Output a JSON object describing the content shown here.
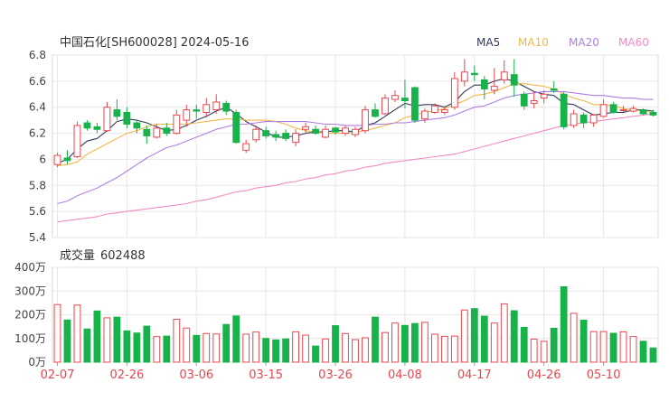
{
  "header": {
    "title": "中国石化[SH600028] 2024-05-16",
    "legend": [
      {
        "label": "MA5",
        "color": "#2f3a5a"
      },
      {
        "label": "MA10",
        "color": "#f0b84a"
      },
      {
        "label": "MA20",
        "color": "#b07ee0"
      },
      {
        "label": "MA60",
        "color": "#f28cc0"
      }
    ]
  },
  "colors": {
    "up": "#e8484f",
    "down": "#18b24b",
    "grid": "#e6e6e6",
    "axis": "#444444",
    "date": "#e8484f"
  },
  "volume_header": {
    "label": "成交量",
    "value": "602488"
  },
  "chart_data": [
    {
      "type": "candlestick",
      "title": "中国石化[SH600028] 2024-05-16",
      "ylim": [
        5.4,
        6.8
      ],
      "yticks": [
        "6.8",
        "6.6",
        "6.4",
        "6.2",
        "6",
        "5.8",
        "5.6",
        "5.4"
      ],
      "ytick_values": [
        6.8,
        6.6,
        6.4,
        6.2,
        6.0,
        5.8,
        5.6,
        5.4
      ],
      "xticks": [
        {
          "label": "02-07",
          "index": 0
        },
        {
          "label": "02-26",
          "index": 7
        },
        {
          "label": "03-06",
          "index": 14
        },
        {
          "label": "03-15",
          "index": 21
        },
        {
          "label": "03-26",
          "index": 28
        },
        {
          "label": "04-08",
          "index": 35
        },
        {
          "label": "04-17",
          "index": 42
        },
        {
          "label": "04-26",
          "index": 49
        },
        {
          "label": "05-10",
          "index": 55
        }
      ],
      "candles": [
        [
          5.96,
          6.03,
          5.94,
          6.05
        ],
        [
          6.01,
          5.99,
          5.96,
          6.07
        ],
        [
          6.02,
          6.26,
          6.01,
          6.29
        ],
        [
          6.28,
          6.24,
          6.22,
          6.3
        ],
        [
          6.25,
          6.23,
          6.2,
          6.28
        ],
        [
          6.22,
          6.4,
          6.21,
          6.44
        ],
        [
          6.38,
          6.33,
          6.3,
          6.46
        ],
        [
          6.36,
          6.27,
          6.24,
          6.4
        ],
        [
          6.28,
          6.24,
          6.2,
          6.3
        ],
        [
          6.23,
          6.18,
          6.12,
          6.26
        ],
        [
          6.17,
          6.24,
          6.16,
          6.27
        ],
        [
          6.24,
          6.2,
          6.18,
          6.28
        ],
        [
          6.2,
          6.34,
          6.19,
          6.38
        ],
        [
          6.3,
          6.38,
          6.25,
          6.42
        ],
        [
          6.38,
          6.37,
          6.31,
          6.42
        ],
        [
          6.36,
          6.42,
          6.32,
          6.47
        ],
        [
          6.38,
          6.44,
          6.35,
          6.5
        ],
        [
          6.43,
          6.37,
          6.34,
          6.45
        ],
        [
          6.36,
          6.13,
          6.12,
          6.38
        ],
        [
          6.07,
          6.12,
          6.05,
          6.15
        ],
        [
          6.15,
          6.23,
          6.13,
          6.26
        ],
        [
          6.22,
          6.18,
          6.16,
          6.25
        ],
        [
          6.19,
          6.17,
          6.14,
          6.22
        ],
        [
          6.2,
          6.16,
          6.14,
          6.23
        ],
        [
          6.13,
          6.2,
          6.1,
          6.23
        ],
        [
          6.23,
          6.25,
          6.2,
          6.28
        ],
        [
          6.23,
          6.2,
          6.19,
          6.26
        ],
        [
          6.17,
          6.23,
          6.16,
          6.26
        ],
        [
          6.24,
          6.21,
          6.19,
          6.25
        ],
        [
          6.2,
          6.24,
          6.18,
          6.26
        ],
        [
          6.19,
          6.23,
          6.17,
          6.25
        ],
        [
          6.22,
          6.38,
          6.2,
          6.41
        ],
        [
          6.38,
          6.33,
          6.32,
          6.43
        ],
        [
          6.35,
          6.47,
          6.34,
          6.5
        ],
        [
          6.46,
          6.49,
          6.44,
          6.53
        ],
        [
          6.47,
          6.45,
          6.39,
          6.61
        ],
        [
          6.55,
          6.3,
          6.28,
          6.56
        ],
        [
          6.31,
          6.37,
          6.28,
          6.39
        ],
        [
          6.36,
          6.41,
          6.35,
          6.43
        ],
        [
          6.36,
          6.38,
          6.34,
          6.41
        ],
        [
          6.4,
          6.62,
          6.38,
          6.67
        ],
        [
          6.6,
          6.67,
          6.56,
          6.77
        ],
        [
          6.66,
          6.65,
          6.6,
          6.72
        ],
        [
          6.61,
          6.54,
          6.46,
          6.64
        ],
        [
          6.53,
          6.56,
          6.5,
          6.7
        ],
        [
          6.61,
          6.67,
          6.58,
          6.76
        ],
        [
          6.65,
          6.57,
          6.48,
          6.77
        ],
        [
          6.5,
          6.41,
          6.38,
          6.52
        ],
        [
          6.43,
          6.45,
          6.39,
          6.52
        ],
        [
          6.47,
          6.5,
          6.43,
          6.53
        ],
        [
          6.54,
          6.53,
          6.51,
          6.6
        ],
        [
          6.5,
          6.25,
          6.23,
          6.52
        ],
        [
          6.26,
          6.35,
          6.24,
          6.38
        ],
        [
          6.34,
          6.28,
          6.24,
          6.36
        ],
        [
          6.28,
          6.34,
          6.25,
          6.35
        ],
        [
          6.33,
          6.42,
          6.32,
          6.46
        ],
        [
          6.42,
          6.36,
          6.35,
          6.44
        ],
        [
          6.38,
          6.38,
          6.36,
          6.41
        ],
        [
          6.37,
          6.39,
          6.36,
          6.41
        ],
        [
          6.38,
          6.35,
          6.34,
          6.39
        ],
        [
          6.36,
          6.34,
          6.33,
          6.38
        ]
      ],
      "series": [
        {
          "name": "MA5",
          "values": [
            5.97,
            6.0,
            6.08,
            6.14,
            6.16,
            6.22,
            6.29,
            6.31,
            6.3,
            6.28,
            6.25,
            6.22,
            6.23,
            6.26,
            6.3,
            6.33,
            6.37,
            6.4,
            6.35,
            6.29,
            6.25,
            6.21,
            6.17,
            6.17,
            6.18,
            6.2,
            6.21,
            6.21,
            6.22,
            6.22,
            6.21,
            6.26,
            6.28,
            6.33,
            6.38,
            6.43,
            6.41,
            6.42,
            6.42,
            6.4,
            6.44,
            6.52,
            6.57,
            6.57,
            6.6,
            6.62,
            6.6,
            6.56,
            6.52,
            6.5,
            6.49,
            6.43,
            6.42,
            6.38,
            6.34,
            6.35,
            6.36,
            6.36,
            6.38,
            6.38,
            6.37
          ]
        },
        {
          "name": "MA10",
          "values": [
            5.95,
            5.96,
            5.98,
            6.04,
            6.08,
            6.12,
            6.16,
            6.2,
            6.22,
            6.25,
            6.27,
            6.27,
            6.27,
            6.27,
            6.28,
            6.29,
            6.3,
            6.31,
            6.31,
            6.3,
            6.3,
            6.3,
            6.29,
            6.27,
            6.24,
            6.22,
            6.21,
            6.2,
            6.2,
            6.2,
            6.21,
            6.22,
            6.24,
            6.26,
            6.28,
            6.32,
            6.34,
            6.36,
            6.37,
            6.39,
            6.42,
            6.45,
            6.49,
            6.5,
            6.52,
            6.55,
            6.58,
            6.58,
            6.57,
            6.56,
            6.54,
            6.5,
            6.47,
            6.45,
            6.42,
            6.42,
            6.41,
            6.39,
            6.38,
            6.37,
            6.36
          ]
        },
        {
          "name": "MA20",
          "values": [
            5.66,
            5.68,
            5.72,
            5.75,
            5.78,
            5.82,
            5.86,
            5.91,
            5.96,
            6.01,
            6.05,
            6.09,
            6.11,
            6.14,
            6.17,
            6.2,
            6.23,
            6.25,
            6.27,
            6.27,
            6.28,
            6.29,
            6.29,
            6.29,
            6.29,
            6.29,
            6.28,
            6.27,
            6.27,
            6.26,
            6.26,
            6.26,
            6.27,
            6.27,
            6.28,
            6.28,
            6.29,
            6.3,
            6.31,
            6.32,
            6.34,
            6.37,
            6.4,
            6.41,
            6.44,
            6.47,
            6.49,
            6.5,
            6.51,
            6.52,
            6.52,
            6.52,
            6.51,
            6.5,
            6.49,
            6.49,
            6.48,
            6.47,
            6.47,
            6.46,
            6.46
          ]
        },
        {
          "name": "MA60",
          "values": [
            5.52,
            5.53,
            5.54,
            5.55,
            5.56,
            5.58,
            5.59,
            5.6,
            5.61,
            5.62,
            5.63,
            5.64,
            5.65,
            5.66,
            5.68,
            5.69,
            5.71,
            5.73,
            5.75,
            5.76,
            5.78,
            5.79,
            5.8,
            5.82,
            5.83,
            5.85,
            5.86,
            5.88,
            5.89,
            5.91,
            5.92,
            5.94,
            5.95,
            5.97,
            5.98,
            5.99,
            6.0,
            6.01,
            6.02,
            6.03,
            6.04,
            6.06,
            6.08,
            6.1,
            6.12,
            6.14,
            6.16,
            6.18,
            6.2,
            6.22,
            6.24,
            6.26,
            6.27,
            6.28,
            6.29,
            6.3,
            6.31,
            6.32,
            6.33,
            6.34,
            6.35
          ]
        }
      ]
    },
    {
      "type": "bar",
      "title": "成交量 602488",
      "ylim": [
        0,
        4000000
      ],
      "yticks": [
        "400万",
        "300万",
        "200万",
        "100万",
        "0万"
      ],
      "ytick_values": [
        4000000,
        3000000,
        2000000,
        1000000,
        0
      ],
      "values": [
        2430000,
        1780000,
        2410000,
        1400000,
        2160000,
        1870000,
        1900000,
        1320000,
        1230000,
        1520000,
        1080000,
        1100000,
        1810000,
        1440000,
        1130000,
        1210000,
        1190000,
        1590000,
        1950000,
        1180000,
        1270000,
        1000000,
        940000,
        980000,
        1280000,
        1140000,
        680000,
        980000,
        1540000,
        1210000,
        950000,
        1030000,
        1900000,
        1250000,
        1650000,
        1550000,
        1630000,
        1680000,
        1180000,
        1090000,
        1100000,
        2200000,
        2260000,
        1940000,
        1650000,
        2460000,
        2170000,
        1470000,
        970000,
        880000,
        1430000,
        3180000,
        2060000,
        1770000,
        1290000,
        1290000,
        1220000,
        1280000,
        1080000,
        880000,
        602488
      ]
    }
  ]
}
